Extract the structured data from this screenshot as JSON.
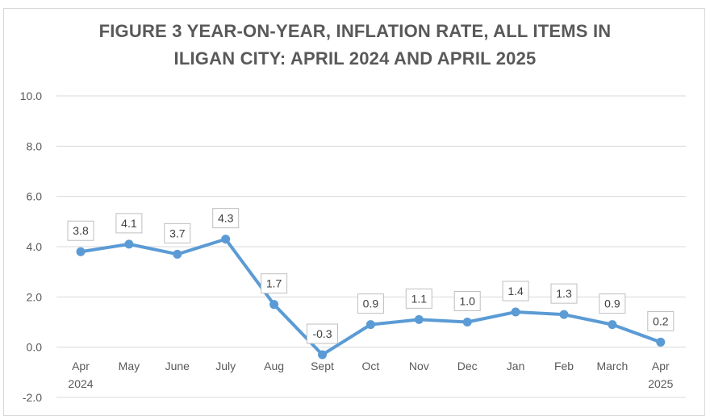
{
  "chart_data": {
    "type": "line",
    "title_line1": "FIGURE 3 YEAR-ON-YEAR, INFLATION RATE, ALL ITEMS IN",
    "title_line2": "ILIGAN CITY: APRIL 2024 AND APRIL 2025",
    "categories": [
      "Apr",
      "May",
      "June",
      "July",
      "Aug",
      "Sept",
      "Oct",
      "Nov",
      "Dec",
      "Jan",
      "Feb",
      "March",
      "Apr"
    ],
    "category_sublabels": [
      "2024",
      "",
      "",
      "",
      "",
      "",
      "",
      "",
      "",
      "",
      "",
      "",
      "2025"
    ],
    "values": [
      3.8,
      4.1,
      3.7,
      4.3,
      1.7,
      -0.3,
      0.9,
      1.1,
      1.0,
      1.4,
      1.3,
      0.9,
      0.2
    ],
    "value_labels": [
      "3.8",
      "4.1",
      "3.7",
      "4.3",
      "1.7",
      "-0.3",
      "0.9",
      "1.1",
      "1.0",
      "1.4",
      "1.3",
      "0.9",
      "0.2"
    ],
    "yticks": [
      "10.0",
      "8.0",
      "6.0",
      "4.0",
      "2.0",
      "0.0",
      "-2.0"
    ],
    "ylim": [
      -2,
      10
    ],
    "grid": true,
    "line_color": "#5b9bd5",
    "grid_color": "#d9d9d9"
  }
}
